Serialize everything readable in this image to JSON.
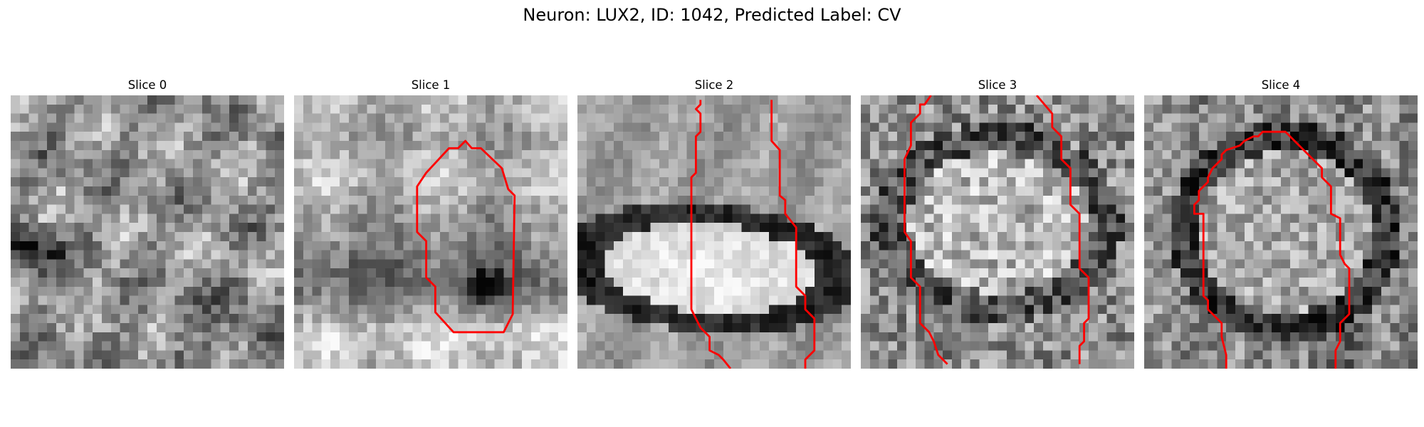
{
  "figure": {
    "title": "Neuron: LUX2, ID: 1042, Predicted Label: CV"
  },
  "style": {
    "contour_color": "#ff0000",
    "grid_size": 30,
    "colormap": "grayscale"
  },
  "panels": [
    {
      "title": "Slice 0",
      "has_contour": false
    },
    {
      "title": "Slice 1",
      "has_contour": true
    },
    {
      "title": "Slice 2",
      "has_contour": true
    },
    {
      "title": "Slice 3",
      "has_contour": true
    },
    {
      "title": "Slice 4",
      "has_contour": true
    }
  ]
}
